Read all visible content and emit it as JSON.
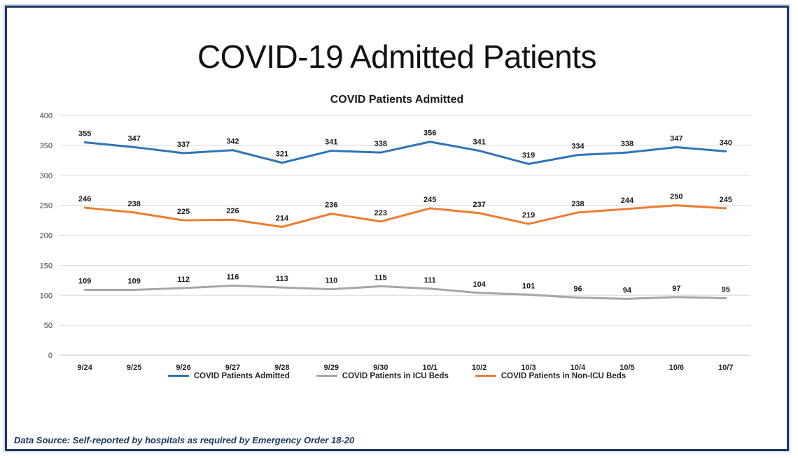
{
  "page": {
    "title": "COVID-19 Admitted Patients",
    "footer": "Data Source: Self-reported by hospitals as required by Emergency Order 18-20"
  },
  "chart_data": {
    "type": "line",
    "title": "COVID Patients Admitted",
    "categories": [
      "9/24",
      "9/25",
      "9/26",
      "9/27",
      "9/28",
      "9/29",
      "9/30",
      "10/1",
      "10/2",
      "10/3",
      "10/4",
      "10/5",
      "10/6",
      "10/7"
    ],
    "series": [
      {
        "name": "COVID Patients Admitted",
        "color": "#2e75b6",
        "values": [
          355,
          347,
          337,
          342,
          321,
          341,
          338,
          356,
          341,
          319,
          334,
          338,
          347,
          340
        ]
      },
      {
        "name": "COVID Patients in ICU Beds",
        "color": "#a6a6a6",
        "values": [
          109,
          109,
          112,
          116,
          113,
          110,
          115,
          111,
          104,
          101,
          96,
          94,
          97,
          95
        ]
      },
      {
        "name": "COVID Patients in Non-ICU Beds",
        "color": "#ed7d31",
        "values": [
          246,
          238,
          225,
          226,
          214,
          236,
          223,
          245,
          237,
          219,
          238,
          244,
          250,
          245
        ]
      }
    ],
    "ylim": [
      0,
      400
    ],
    "ytick_step": 50,
    "grid": true,
    "legend_position": "bottom",
    "data_labels": true,
    "xlabel": "",
    "ylabel": ""
  },
  "style": {
    "frame_border": "#1f3864",
    "gridline": "#d9d9d9",
    "baseline": "#bfbfbf",
    "axis_text": "#404040",
    "label_text": "#1a1a1a"
  }
}
